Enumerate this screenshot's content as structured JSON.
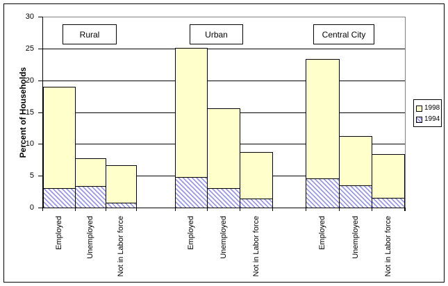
{
  "figure_title": "",
  "chart_data": {
    "type": "bar",
    "title": "",
    "xlabel": "",
    "ylabel": "Percent of Households",
    "ylim": [
      0,
      30
    ],
    "ytick_step": 5,
    "yticks": [
      0,
      5,
      10,
      15,
      20,
      25,
      30
    ],
    "grid": true,
    "legend_position": "right",
    "group_labels": [
      "Rural",
      "Urban",
      "Central City"
    ],
    "categories": [
      "Employed",
      "Unemployed",
      "Not in Labor force"
    ],
    "series": [
      {
        "name": "1998",
        "fill": "solid",
        "color": "#FFFFCC",
        "values": [
          [
            19.0,
            7.7,
            6.7
          ],
          [
            25.1,
            15.6,
            8.7
          ],
          [
            23.4,
            11.2,
            8.4
          ]
        ]
      },
      {
        "name": "1994",
        "fill": "diagonal-hatch",
        "color": "#9999EE",
        "values": [
          [
            3.0,
            3.4,
            0.8
          ],
          [
            4.8,
            3.0,
            1.4
          ],
          [
            4.6,
            3.5,
            1.5
          ]
        ]
      }
    ]
  },
  "colors": {
    "bar_fill_1998": "#FFFFCC",
    "hatch_1994": "#9999EE",
    "plot_border": "#808080",
    "axis_line": "#000000"
  }
}
